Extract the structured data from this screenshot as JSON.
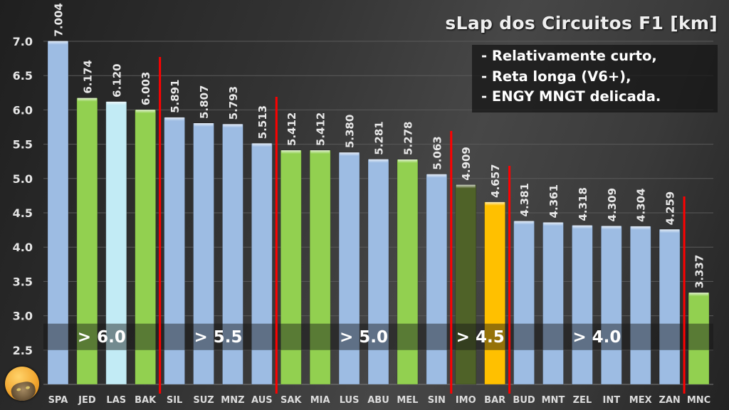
{
  "chart_data": {
    "type": "bar",
    "title": "sLap dos Circuitos F1 [km]",
    "xlabel": "",
    "ylabel": "",
    "ylim": [
      2.0,
      7.0
    ],
    "y_ticks": [
      "2.5",
      "3.0",
      "3.5",
      "4.0",
      "4.5",
      "5.0",
      "5.5",
      "6.0",
      "6.5",
      "7.0"
    ],
    "grid": true,
    "categories": [
      "SPA",
      "JED",
      "LAS",
      "BAK",
      "SIL",
      "SUZ",
      "MNZ",
      "AUS",
      "SAK",
      "MIA",
      "LUS",
      "ABU",
      "MEL",
      "SIN",
      "IMO",
      "BAR",
      "BUD",
      "MNT",
      "ZEL",
      "INT",
      "MEX",
      "ZAN",
      "MNC"
    ],
    "values": [
      7.004,
      6.174,
      6.12,
      6.003,
      5.891,
      5.807,
      5.793,
      5.513,
      5.412,
      5.412,
      5.38,
      5.281,
      5.278,
      5.063,
      4.909,
      4.657,
      4.381,
      4.361,
      4.318,
      4.309,
      4.304,
      4.259,
      3.337
    ],
    "value_labels": [
      "7.004",
      "6.174",
      "6.120",
      "6.003",
      "5.891",
      "5.807",
      "5.793",
      "5.513",
      "5.412",
      "5.412",
      "5.380",
      "5.281",
      "5.278",
      "5.063",
      "4.909",
      "4.657",
      "4.381",
      "4.361",
      "4.318",
      "4.309",
      "4.304",
      "4.259",
      "3.337"
    ],
    "bar_colors": [
      "#9dbce3",
      "#92d050",
      "#c2ebf5",
      "#92d050",
      "#9dbce3",
      "#9dbce3",
      "#9dbce3",
      "#9dbce3",
      "#92d050",
      "#92d050",
      "#9dbce3",
      "#9dbce3",
      "#92d050",
      "#9dbce3",
      "#4f6228",
      "#ffc000",
      "#9dbce3",
      "#9dbce3",
      "#9dbce3",
      "#9dbce3",
      "#9dbce3",
      "#9dbce3",
      "#92d050"
    ],
    "group_dividers_after_index": [
      3,
      7,
      13,
      15,
      21
    ],
    "group_labels": [
      {
        "text": "> 6.0",
        "start": 0,
        "end": 3
      },
      {
        "text": "> 5.5",
        "start": 4,
        "end": 7
      },
      {
        "text": "> 5.0",
        "start": 8,
        "end": 13
      },
      {
        "text": "> 4.5",
        "start": 14,
        "end": 15
      },
      {
        "text": "> 4.0",
        "start": 16,
        "end": 21
      }
    ],
    "divider_color": "#ff0000"
  },
  "title": "sLap dos Circuitos F1 [km]",
  "notes": [
    "- Relativamente curto,",
    "- Reta longa (V6+),",
    "- ENGY MNGT delicada."
  ],
  "avatar_icon": "cat-in-helmet-avatar"
}
